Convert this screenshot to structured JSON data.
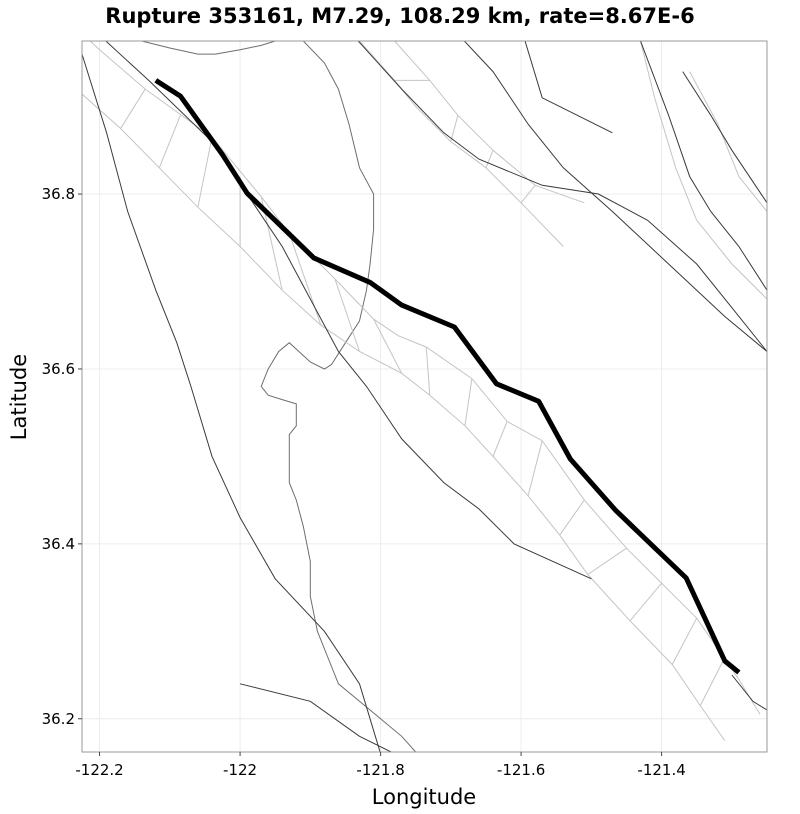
{
  "chart_data": {
    "type": "map",
    "title": "Rupture 353161, M7.29, 108.29 km, rate=8.67E-6",
    "xlabel": "Longitude",
    "ylabel": "Latitude",
    "xlim": [
      -122.225,
      -121.25
    ],
    "ylim": [
      36.162,
      36.975
    ],
    "x_ticks": [
      -122.2,
      -122.0,
      -121.8,
      -121.6,
      -121.4
    ],
    "x_tick_labels": [
      "-122.2",
      "-122",
      "-121.8",
      "-121.6",
      "-121.4"
    ],
    "y_ticks": [
      36.2,
      36.4,
      36.6,
      36.8
    ],
    "y_tick_labels": [
      "36.2",
      "36.4",
      "36.6",
      "36.8"
    ],
    "grid": true,
    "colors": {
      "rupture": "#000000",
      "section": "#c4c4c4",
      "fault": "#3a3a3a",
      "coast": "#6e6e6e"
    },
    "rupture_trace": [
      [
        -122.12,
        36.93
      ],
      [
        -122.085,
        36.912
      ],
      [
        -122.025,
        36.845
      ],
      [
        -121.99,
        36.801
      ],
      [
        -121.895,
        36.727
      ],
      [
        -121.815,
        36.699
      ],
      [
        -121.77,
        36.673
      ],
      [
        -121.695,
        36.648
      ],
      [
        -121.635,
        36.583
      ],
      [
        -121.575,
        36.563
      ],
      [
        -121.53,
        36.497
      ],
      [
        -121.465,
        36.438
      ],
      [
        -121.365,
        36.361
      ],
      [
        -121.31,
        36.266
      ],
      [
        -121.29,
        36.253
      ]
    ],
    "section_outline_top": [
      [
        -122.26,
        37.01
      ],
      [
        -122.2,
        36.965
      ],
      [
        -122.135,
        36.92
      ],
      [
        -122.04,
        36.865
      ],
      [
        -121.97,
        36.797
      ],
      [
        -121.93,
        36.755
      ],
      [
        -121.865,
        36.703
      ],
      [
        -121.81,
        36.657
      ],
      [
        -121.775,
        36.638
      ],
      [
        -121.735,
        36.625
      ],
      [
        -121.67,
        36.589
      ],
      [
        -121.62,
        36.54
      ],
      [
        -121.57,
        36.518
      ],
      [
        -121.51,
        36.45
      ],
      [
        -121.45,
        36.395
      ],
      [
        -121.35,
        36.315
      ],
      [
        -121.29,
        36.245
      ],
      [
        -121.26,
        36.205
      ]
    ],
    "section_outline_bottom": [
      [
        -122.24,
        36.925
      ],
      [
        -122.17,
        36.875
      ],
      [
        -122.115,
        36.83
      ],
      [
        -122.06,
        36.785
      ],
      [
        -122.0,
        36.74
      ],
      [
        -121.94,
        36.69
      ],
      [
        -121.885,
        36.65
      ],
      [
        -121.83,
        36.62
      ],
      [
        -121.77,
        36.595
      ],
      [
        -121.73,
        36.57
      ],
      [
        -121.68,
        36.535
      ],
      [
        -121.64,
        36.5
      ],
      [
        -121.59,
        36.455
      ],
      [
        -121.545,
        36.41
      ],
      [
        -121.505,
        36.365
      ],
      [
        -121.445,
        36.312
      ],
      [
        -121.385,
        36.262
      ],
      [
        -121.345,
        36.215
      ],
      [
        -121.31,
        36.175
      ]
    ],
    "section_dividers": [
      [
        [
          -122.135,
          36.92
        ],
        [
          -122.17,
          36.875
        ]
      ],
      [
        [
          -122.085,
          36.89
        ],
        [
          -122.115,
          36.83
        ]
      ],
      [
        [
          -122.04,
          36.865
        ],
        [
          -122.06,
          36.785
        ]
      ],
      [
        [
          -122.0,
          36.82
        ],
        [
          -122.0,
          36.74
        ]
      ],
      [
        [
          -121.97,
          36.797
        ],
        [
          -121.94,
          36.69
        ]
      ],
      [
        [
          -121.93,
          36.755
        ],
        [
          -121.885,
          36.65
        ]
      ],
      [
        [
          -121.865,
          36.703
        ],
        [
          -121.83,
          36.62
        ]
      ],
      [
        [
          -121.81,
          36.657
        ],
        [
          -121.77,
          36.595
        ]
      ],
      [
        [
          -121.735,
          36.625
        ],
        [
          -121.73,
          36.57
        ]
      ],
      [
        [
          -121.67,
          36.589
        ],
        [
          -121.68,
          36.535
        ]
      ],
      [
        [
          -121.62,
          36.54
        ],
        [
          -121.64,
          36.5
        ]
      ],
      [
        [
          -121.57,
          36.518
        ],
        [
          -121.59,
          36.455
        ]
      ],
      [
        [
          -121.51,
          36.45
        ],
        [
          -121.545,
          36.41
        ]
      ],
      [
        [
          -121.45,
          36.395
        ],
        [
          -121.505,
          36.365
        ]
      ],
      [
        [
          -121.4,
          36.355
        ],
        [
          -121.445,
          36.312
        ]
      ],
      [
        [
          -121.35,
          36.315
        ],
        [
          -121.385,
          36.262
        ]
      ],
      [
        [
          -121.31,
          36.27
        ],
        [
          -121.345,
          36.215
        ]
      ]
    ],
    "ne_section_outline_a": [
      [
        -121.83,
        36.975
      ],
      [
        -121.78,
        36.93
      ],
      [
        -121.75,
        36.9
      ],
      [
        -121.7,
        36.86
      ],
      [
        -121.65,
        36.83
      ],
      [
        -121.6,
        36.79
      ],
      [
        -121.54,
        36.74
      ]
    ],
    "ne_section_outline_b": [
      [
        -121.78,
        36.975
      ],
      [
        -121.73,
        36.93
      ],
      [
        -121.69,
        36.89
      ],
      [
        -121.64,
        36.85
      ],
      [
        -121.58,
        36.81
      ],
      [
        -121.51,
        36.79
      ]
    ],
    "ne_section_dividers": [
      [
        [
          -121.78,
          36.93
        ],
        [
          -121.73,
          36.93
        ]
      ],
      [
        [
          -121.7,
          36.86
        ],
        [
          -121.69,
          36.89
        ]
      ],
      [
        [
          -121.65,
          36.83
        ],
        [
          -121.64,
          36.85
        ]
      ],
      [
        [
          -121.6,
          36.79
        ],
        [
          -121.58,
          36.81
        ]
      ]
    ],
    "far_ne_section_outline_a": [
      [
        -121.43,
        36.975
      ],
      [
        -121.41,
        36.91
      ],
      [
        -121.38,
        36.83
      ],
      [
        -121.35,
        36.77
      ],
      [
        -121.3,
        36.72
      ],
      [
        -121.25,
        36.68
      ]
    ],
    "far_ne_section_outline_b": [
      [
        -121.36,
        36.94
      ],
      [
        -121.32,
        36.88
      ],
      [
        -121.29,
        36.82
      ],
      [
        -121.25,
        36.78
      ]
    ],
    "fault_traces": [
      [
        [
          -122.225,
          36.96
        ],
        [
          -122.19,
          36.87
        ],
        [
          -122.16,
          36.78
        ],
        [
          -122.12,
          36.69
        ],
        [
          -122.09,
          36.63
        ],
        [
          -122.07,
          36.58
        ],
        [
          -122.04,
          36.5
        ],
        [
          -122.0,
          36.43
        ],
        [
          -121.95,
          36.36
        ],
        [
          -121.88,
          36.3
        ],
        [
          -121.83,
          36.24
        ],
        [
          -121.8,
          36.16
        ]
      ],
      [
        [
          -122.225,
          37.0
        ],
        [
          -122.13,
          36.93
        ],
        [
          -122.04,
          36.86
        ],
        [
          -121.99,
          36.8
        ],
        [
          -121.94,
          36.74
        ],
        [
          -121.9,
          36.68
        ],
        [
          -121.86,
          36.62
        ],
        [
          -121.82,
          36.58
        ],
        [
          -121.77,
          36.52
        ],
        [
          -121.71,
          36.47
        ],
        [
          -121.66,
          36.44
        ],
        [
          -121.61,
          36.4
        ],
        [
          -121.5,
          36.36
        ]
      ],
      [
        [
          -121.86,
          37.0
        ],
        [
          -121.77,
          36.92
        ],
        [
          -121.71,
          36.87
        ],
        [
          -121.66,
          36.84
        ],
        [
          -121.57,
          36.81
        ],
        [
          -121.49,
          36.8
        ],
        [
          -121.42,
          36.77
        ],
        [
          -121.35,
          36.72
        ],
        [
          -121.3,
          36.67
        ],
        [
          -121.25,
          36.62
        ]
      ],
      [
        [
          -121.71,
          37.0
        ],
        [
          -121.64,
          36.94
        ],
        [
          -121.59,
          36.88
        ],
        [
          -121.54,
          36.83
        ],
        [
          -121.47,
          36.78
        ],
        [
          -121.39,
          36.72
        ],
        [
          -121.31,
          36.66
        ],
        [
          -121.25,
          36.62
        ]
      ],
      [
        [
          -121.6,
          36.99
        ],
        [
          -121.57,
          36.91
        ],
        [
          -121.47,
          36.87
        ]
      ],
      [
        [
          -121.43,
          36.975
        ],
        [
          -121.39,
          36.89
        ],
        [
          -121.36,
          36.82
        ],
        [
          -121.33,
          36.78
        ],
        [
          -121.29,
          36.74
        ],
        [
          -121.25,
          36.69
        ]
      ],
      [
        [
          -121.37,
          36.94
        ],
        [
          -121.33,
          36.89
        ],
        [
          -121.3,
          36.85
        ],
        [
          -121.25,
          36.79
        ]
      ],
      [
        [
          -122.0,
          36.24
        ],
        [
          -121.9,
          36.22
        ],
        [
          -121.83,
          36.18
        ],
        [
          -121.78,
          36.16
        ]
      ],
      [
        [
          -121.3,
          36.25
        ],
        [
          -121.27,
          36.22
        ],
        [
          -121.25,
          36.21
        ]
      ]
    ],
    "coastline": [
      [
        -122.14,
        36.975
      ],
      [
        -122.1,
        36.967
      ],
      [
        -122.06,
        36.96
      ],
      [
        -122.035,
        36.96
      ],
      [
        -122.0,
        36.965
      ],
      [
        -121.97,
        36.97
      ],
      [
        -121.95,
        36.975
      ],
      [
        -121.91,
        36.975
      ],
      [
        -121.88,
        36.95
      ],
      [
        -121.86,
        36.92
      ],
      [
        -121.845,
        36.88
      ],
      [
        -121.83,
        36.83
      ],
      [
        -121.81,
        36.8
      ],
      [
        -121.81,
        36.76
      ],
      [
        -121.815,
        36.72
      ],
      [
        -121.82,
        36.69
      ],
      [
        -121.83,
        36.655
      ],
      [
        -121.85,
        36.63
      ],
      [
        -121.87,
        36.605
      ],
      [
        -121.88,
        36.6
      ],
      [
        -121.9,
        36.608
      ],
      [
        -121.93,
        36.63
      ],
      [
        -121.945,
        36.62
      ],
      [
        -121.96,
        36.6
      ],
      [
        -121.97,
        36.58
      ],
      [
        -121.96,
        36.57
      ],
      [
        -121.94,
        36.565
      ],
      [
        -121.92,
        36.56
      ],
      [
        -121.92,
        36.535
      ],
      [
        -121.93,
        36.525
      ],
      [
        -121.93,
        36.5
      ],
      [
        -121.93,
        36.47
      ],
      [
        -121.92,
        36.45
      ],
      [
        -121.91,
        36.42
      ],
      [
        -121.9,
        36.38
      ],
      [
        -121.9,
        36.34
      ],
      [
        -121.89,
        36.3
      ],
      [
        -121.875,
        36.27
      ],
      [
        -121.86,
        36.24
      ],
      [
        -121.83,
        36.22
      ],
      [
        -121.8,
        36.2
      ],
      [
        -121.77,
        36.18
      ],
      [
        -121.75,
        36.162
      ]
    ]
  }
}
